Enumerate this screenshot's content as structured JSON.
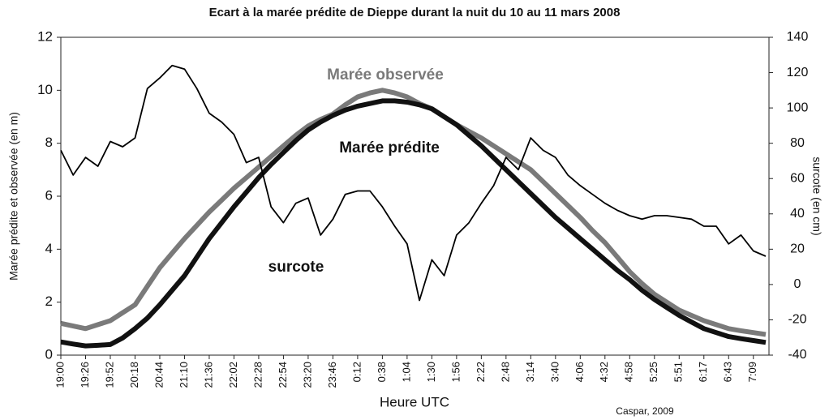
{
  "chart_data": {
    "type": "line",
    "title": "Ecart à la marée prédite de Dieppe durant la nuit du 10 au 11 mars 2008",
    "xlabel": "Heure UTC",
    "ylabel": "Marée prédite et observée (en m)",
    "y2label": "surcote (en cm)",
    "credit": "Caspar, 2009",
    "categories": [
      "19:00",
      null,
      "19:26",
      null,
      "19:52",
      null,
      "20:18",
      null,
      "20:44",
      null,
      "21:10",
      null,
      "21:36",
      null,
      "22:02",
      null,
      "22:28",
      null,
      "22:54",
      null,
      "23:20",
      null,
      "23:46",
      null,
      "0:12",
      null,
      "0:38",
      null,
      "1:04",
      null,
      "1:30",
      null,
      "1:56",
      null,
      "2:22",
      null,
      "2:48",
      null,
      "3:14",
      null,
      "3:40",
      null,
      "4:06",
      null,
      "4:32",
      null,
      "4:58",
      null,
      "5:25",
      null,
      "5:51",
      null,
      "6:17",
      null,
      "6:43",
      null,
      "7:09",
      null
    ],
    "series": [
      {
        "name": "Marée observée",
        "color": "#7a7a7a",
        "values": [
          1.2,
          1.1,
          1.0,
          1.15,
          1.3,
          1.6,
          1.9,
          2.6,
          3.3,
          3.85,
          4.4,
          4.9,
          5.4,
          5.85,
          6.3,
          6.7,
          7.1,
          7.5,
          7.9,
          8.3,
          8.65,
          8.9,
          9.1,
          9.45,
          9.75,
          9.9,
          10.0,
          9.9,
          9.75,
          9.5,
          9.3,
          9.0,
          8.7,
          8.45,
          8.2,
          7.9,
          7.6,
          7.3,
          7.0,
          6.55,
          6.1,
          5.65,
          5.2,
          4.7,
          4.25,
          3.7,
          3.15,
          2.7,
          2.3,
          2.0,
          1.7,
          1.5,
          1.3,
          1.15,
          1.0,
          0.92,
          0.85,
          0.78
        ]
      },
      {
        "name": "Marée prédite",
        "color": "#111111",
        "values": [
          0.5,
          0.42,
          0.35,
          0.37,
          0.4,
          0.65,
          1.0,
          1.4,
          1.9,
          2.45,
          3.0,
          3.7,
          4.4,
          5.0,
          5.6,
          6.15,
          6.7,
          7.2,
          7.65,
          8.1,
          8.5,
          8.8,
          9.05,
          9.25,
          9.4,
          9.5,
          9.6,
          9.6,
          9.55,
          9.45,
          9.3,
          9.0,
          8.7,
          8.3,
          7.9,
          7.45,
          7.0,
          6.55,
          6.1,
          5.65,
          5.2,
          4.8,
          4.4,
          4.0,
          3.6,
          3.2,
          2.85,
          2.45,
          2.1,
          1.8,
          1.5,
          1.25,
          1.0,
          0.85,
          0.7,
          0.62,
          0.55,
          0.48
        ]
      },
      {
        "name": "surcote",
        "color": "#000000",
        "axis": "y2",
        "values": [
          76,
          62,
          72,
          67,
          81,
          78,
          83,
          111,
          117,
          124,
          122,
          111,
          97,
          92,
          85,
          69,
          72,
          44,
          35,
          46,
          49,
          28,
          37,
          51,
          53,
          53,
          44,
          33,
          23,
          -9,
          14,
          5,
          28,
          35,
          46,
          56,
          72,
          65,
          83,
          76,
          72,
          62,
          56,
          51,
          46,
          42,
          39,
          37,
          39,
          39,
          38,
          37,
          33,
          33,
          23,
          28,
          19,
          16
        ]
      }
    ],
    "ylim": [
      0,
      12
    ],
    "yticks": [
      0,
      2,
      4,
      6,
      8,
      10,
      12
    ],
    "y2lim": [
      -40,
      140
    ],
    "y2ticks": [
      -40,
      -20,
      0,
      20,
      40,
      60,
      80,
      100,
      120,
      140
    ]
  }
}
